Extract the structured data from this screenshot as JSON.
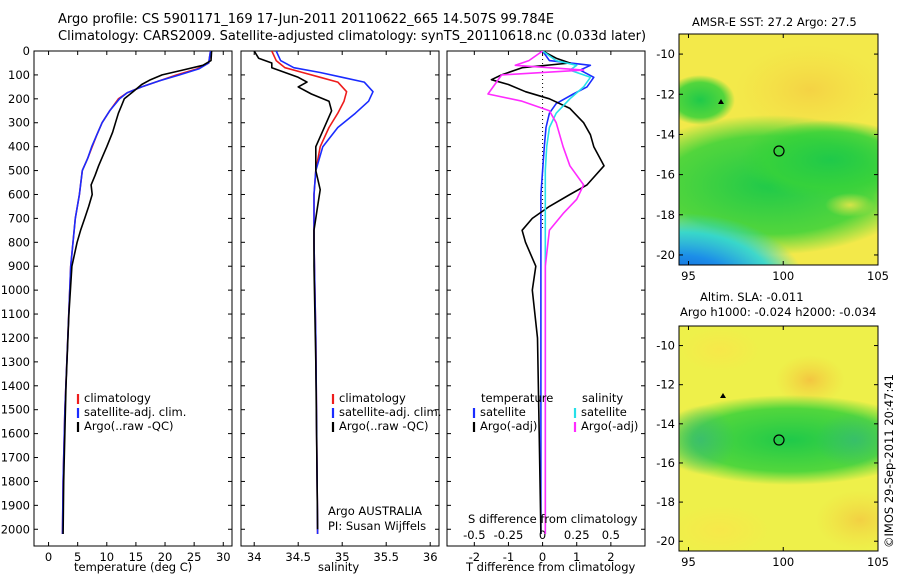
{
  "header": {
    "title_line1": "Argo profile: CS 5901171_169 17-Jun-2011 20110622_665 14.507S 99.784E",
    "title_line2": "Climatology: CARS2009. Satellite-adjusted climatology: synTS_20110618.nc (0.033d later)"
  },
  "colors": {
    "climatology": "#ee1c1c",
    "satellite": "#1a2cff",
    "argo": "#000000",
    "satellite_s": "#25e0e8",
    "argo_s": "#ff2bff"
  },
  "depth_axis": {
    "ticks": [
      0,
      100,
      200,
      300,
      400,
      500,
      600,
      700,
      800,
      900,
      1000,
      1100,
      1200,
      1300,
      1400,
      1500,
      1600,
      1700,
      1800,
      1900,
      2000
    ],
    "ylim": [
      0,
      2070
    ]
  },
  "panels": {
    "temperature": {
      "xlabel": "temperature (deg C)",
      "xticks": [
        "0",
        "5",
        "10",
        "15",
        "20",
        "25",
        "30"
      ],
      "legend": [
        "climatology",
        "satellite-adj. clim.",
        "Argo(..raw -QC)"
      ]
    },
    "salinity": {
      "xlabel": "salinity",
      "xticks": [
        "34",
        "34.5",
        "35",
        "35.5",
        "36"
      ],
      "legend": [
        "climatology",
        "satellite-adj. clim.",
        "Argo(..raw -QC)"
      ],
      "credit_line1": "Argo AUSTRALIA",
      "credit_line2": "PI: Susan Wijffels"
    },
    "difference": {
      "xlabel_top": "S difference from climatology",
      "xlabel": "T difference from climatology",
      "s_ticks": [
        "-0.5",
        "-0.25",
        "0",
        "0.25",
        "0.5"
      ],
      "t_ticks": [
        "-2",
        "-1",
        "0",
        "1",
        "2"
      ],
      "legend_temp_title": "temperature",
      "legend_sal_title": "salinity",
      "legend_temp": [
        "satellite",
        "Argo(-adj)"
      ],
      "legend_sal": [
        "satellite",
        "Argo(-adj)"
      ]
    }
  },
  "maps": {
    "sst_title": "AMSR-E SST: 27.2 Argo: 27.5",
    "sla_title_line1": "Altim. SLA: -0.011",
    "sla_title_line2": "Argo h1000: -0.024 h2000: -0.034",
    "lat_ticks": [
      "-10",
      "-12",
      "-14",
      "-16",
      "-18",
      "-20"
    ],
    "lon_ticks": [
      "95",
      "100",
      "105"
    ]
  },
  "footer": {
    "stamp": "©IMOS 29-Sep-2011 20:47:41"
  },
  "chart_data": [
    {
      "type": "line",
      "title": "",
      "xlabel": "temperature (deg C)",
      "ylabel": "",
      "xlim": [
        -2.5,
        31.5
      ],
      "ylim": [
        2070,
        0
      ],
      "series": [
        {
          "name": "climatology",
          "x": [
            27.8,
            27.5,
            25.5,
            22,
            19,
            16,
            13.5,
            12,
            10.5,
            9.2,
            8.3,
            7.5,
            6.7,
            5.8,
            5.3,
            4.6,
            3.8,
            3.3,
            2.8,
            2.5,
            2.4
          ],
          "y": [
            0,
            50,
            75,
            100,
            125,
            150,
            175,
            200,
            250,
            300,
            350,
            400,
            450,
            500,
            600,
            700,
            900,
            1200,
            1500,
            1800,
            2020
          ]
        },
        {
          "name": "satellite-adj. clim.",
          "x": [
            27.8,
            27.5,
            25.8,
            22.5,
            19,
            16,
            13.5,
            12.2,
            10.5,
            9.2,
            8.3,
            7.4,
            6.7,
            5.8,
            5.3,
            4.6,
            3.8,
            3.3,
            2.8,
            2.5,
            2.4
          ],
          "y": [
            0,
            50,
            75,
            100,
            125,
            150,
            175,
            200,
            250,
            300,
            350,
            400,
            450,
            500,
            600,
            700,
            900,
            1200,
            1500,
            1800,
            2020
          ]
        },
        {
          "name": "Argo(..raw -QC)",
          "x": [
            28,
            27.9,
            26.5,
            23,
            19.5,
            17.5,
            16,
            14.5,
            13,
            12.5,
            12,
            11.5,
            11,
            10,
            9.3,
            8.6,
            8,
            7.3,
            7.5,
            6.9,
            6.2,
            5.5,
            4.9,
            4,
            3.5,
            3,
            2.6,
            2.5
          ],
          "y": [
            0,
            40,
            60,
            80,
            100,
            120,
            140,
            170,
            200,
            230,
            260,
            300,
            340,
            400,
            440,
            480,
            520,
            560,
            600,
            650,
            700,
            750,
            800,
            900,
            1100,
            1400,
            1800,
            2020
          ]
        }
      ]
    },
    {
      "type": "line",
      "title": "",
      "xlabel": "salinity",
      "ylabel": "",
      "xlim": [
        33.85,
        36.1
      ],
      "ylim": [
        2070,
        0
      ],
      "series": [
        {
          "name": "climatology",
          "x": [
            34.2,
            34.25,
            34.35,
            34.55,
            34.75,
            34.95,
            35.05,
            35.02,
            34.95,
            34.85,
            34.75,
            34.7,
            34.68,
            34.68,
            34.7,
            34.72
          ],
          "y": [
            0,
            40,
            70,
            90,
            110,
            130,
            170,
            210,
            260,
            320,
            400,
            500,
            600,
            800,
            1200,
            2020
          ]
        },
        {
          "name": "satellite-adj. clim.",
          "x": [
            34.25,
            34.3,
            34.45,
            34.75,
            35,
            35.25,
            35.35,
            35.3,
            35.15,
            34.95,
            34.78,
            34.7,
            34.68,
            34.68,
            34.7,
            34.72
          ],
          "y": [
            0,
            40,
            70,
            90,
            110,
            130,
            170,
            210,
            260,
            320,
            400,
            500,
            600,
            800,
            1200,
            2020
          ]
        },
        {
          "name": "Argo(..raw -QC)",
          "x": [
            34.0,
            34.05,
            34.2,
            34.2,
            34.35,
            34.5,
            34.6,
            34.5,
            34.65,
            34.85,
            34.88,
            34.82,
            34.7,
            34.7,
            34.75,
            34.72,
            34.68,
            34.68,
            34.7,
            34.72
          ],
          "y": [
            0,
            30,
            50,
            70,
            90,
            110,
            130,
            150,
            180,
            210,
            250,
            300,
            400,
            500,
            580,
            650,
            750,
            900,
            1300,
            2000
          ]
        }
      ]
    },
    {
      "type": "line",
      "title": "",
      "xlabel": "T difference from climatology",
      "ylabel": "",
      "xlim": [
        -2.8,
        3.0
      ],
      "ylim": [
        2070,
        0
      ],
      "series": [
        {
          "name": "temperature satellite",
          "x": [
            0,
            0.2,
            1.4,
            1.1,
            1.5,
            1.3,
            0.9,
            0.4,
            0.2,
            0.1,
            0.05,
            0,
            -0.05,
            -0.05,
            -0.05,
            -0.05,
            -0.05
          ],
          "y": [
            0,
            40,
            60,
            80,
            110,
            150,
            180,
            220,
            260,
            320,
            400,
            500,
            600,
            800,
            1000,
            1500,
            2020
          ]
        },
        {
          "name": "temperature Argo(-adj)",
          "x": [
            0,
            0.4,
            0.8,
            -0.6,
            -1.2,
            -1.5,
            -1.0,
            -0.5,
            0.2,
            0.8,
            1.2,
            1.4,
            1.5,
            1.8,
            1.3,
            0.8,
            0.2,
            -0.3,
            -0.6,
            -0.5,
            -0.2,
            -0.3,
            -0.15,
            -0.1,
            -0.05
          ],
          "y": [
            0,
            30,
            50,
            70,
            100,
            120,
            140,
            170,
            200,
            240,
            300,
            350,
            400,
            480,
            560,
            600,
            650,
            700,
            750,
            800,
            900,
            1000,
            1200,
            1600,
            2020
          ]
        },
        {
          "name": "salinity satellite",
          "x": [
            0,
            0.1,
            0.25,
            0.2,
            0.35,
            0.3,
            0.2,
            0.1,
            0.05,
            0.03,
            0.02,
            0.02,
            0.02,
            0.02,
            0.02
          ],
          "y": [
            0,
            40,
            60,
            80,
            110,
            150,
            200,
            260,
            320,
            400,
            500,
            700,
            900,
            1300,
            2020
          ]
        },
        {
          "name": "salinity Argo(-adj)",
          "x": [
            0,
            -0.1,
            -0.2,
            0.3,
            -0.3,
            -0.35,
            -0.4,
            -0.15,
            0.05,
            0.1,
            0.15,
            0.2,
            0.3,
            0.25,
            0.15,
            0.05,
            0.02,
            0.02,
            0.02
          ],
          "y": [
            0,
            40,
            60,
            80,
            100,
            140,
            180,
            210,
            250,
            300,
            400,
            480,
            560,
            620,
            680,
            750,
            900,
            1300,
            2020
          ]
        }
      ]
    }
  ]
}
